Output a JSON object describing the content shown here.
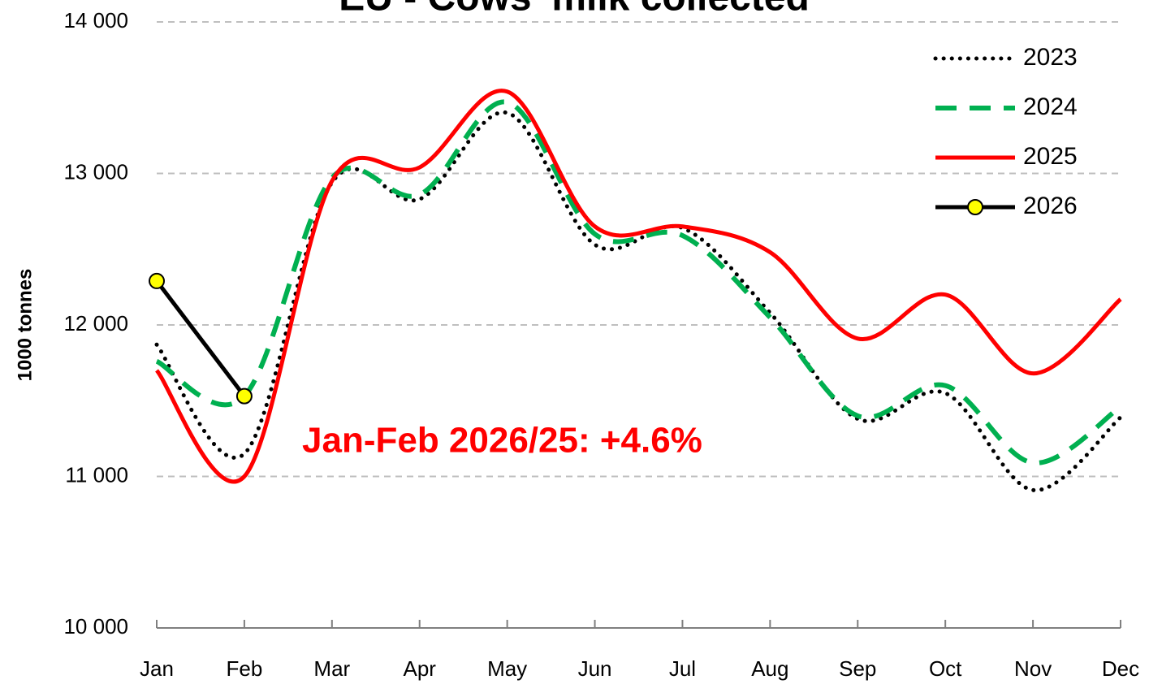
{
  "chart_data": {
    "type": "line",
    "title": "EU - Cows' milk collected",
    "y_label": "1000 tonnes",
    "annotation": "Jan-Feb 2026/25: +4.6%",
    "categories": [
      "Jan",
      "Feb",
      "Mar",
      "Apr",
      "May",
      "Jun",
      "Jul",
      "Aug",
      "Sep",
      "Oct",
      "Nov",
      "Dec"
    ],
    "series": [
      {
        "name": "2023",
        "color": "#000000",
        "line_style": "dotted",
        "values": [
          11870,
          11150,
          12940,
          12830,
          13400,
          12530,
          12640,
          12080,
          11380,
          11550,
          10910,
          11390
        ]
      },
      {
        "name": "2024",
        "color": "#00b050",
        "line_style": "dashed",
        "values": [
          11760,
          11530,
          12970,
          12860,
          13470,
          12600,
          12590,
          12050,
          11400,
          11600,
          11090,
          11460
        ]
      },
      {
        "name": "2025",
        "color": "#ff0000",
        "line_style": "solid",
        "values": [
          11700,
          11000,
          12950,
          13040,
          13540,
          12650,
          12650,
          12480,
          11910,
          12200,
          11680,
          12170
        ]
      },
      {
        "name": "2026",
        "color": "#000000",
        "marker_color": "#ffff00",
        "line_style": "solid",
        "values": [
          12290,
          11530,
          null,
          null,
          null,
          null,
          null,
          null,
          null,
          null,
          null,
          null
        ]
      }
    ],
    "ylim": [
      10000,
      14000
    ],
    "yticks": [
      {
        "value": 10000,
        "label": "10 000"
      },
      {
        "value": 11000,
        "label": "11 000"
      },
      {
        "value": 12000,
        "label": "12 000"
      },
      {
        "value": 13000,
        "label": "13 000"
      },
      {
        "value": 14000,
        "label": "14 000"
      }
    ],
    "grid": true,
    "legend": "top-right"
  }
}
